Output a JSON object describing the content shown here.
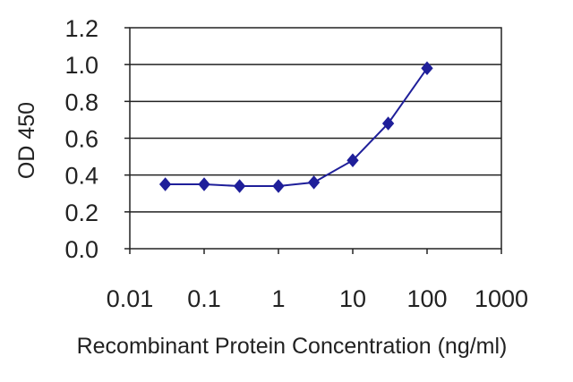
{
  "chart_data": {
    "type": "line",
    "title": "",
    "xlabel": "Recombinant Protein Concentration (ng/ml)",
    "ylabel": "OD 450",
    "x_scale": "log",
    "xlim": [
      0.01,
      1000
    ],
    "ylim": [
      0.0,
      1.2
    ],
    "x_ticks": [
      "0.01",
      "0.1",
      "1",
      "10",
      "100",
      "1000"
    ],
    "y_ticks": [
      "0.0",
      "0.2",
      "0.4",
      "0.6",
      "0.8",
      "1.0",
      "1.2"
    ],
    "grid": "horizontal",
    "legend": "none",
    "series": [
      {
        "color": "#1f1f9a",
        "marker": "diamond",
        "x": [
          0.03,
          0.1,
          0.3,
          1,
          3,
          10,
          30,
          100
        ],
        "y": [
          0.35,
          0.35,
          0.34,
          0.34,
          0.36,
          0.48,
          0.68,
          0.98
        ]
      }
    ]
  }
}
